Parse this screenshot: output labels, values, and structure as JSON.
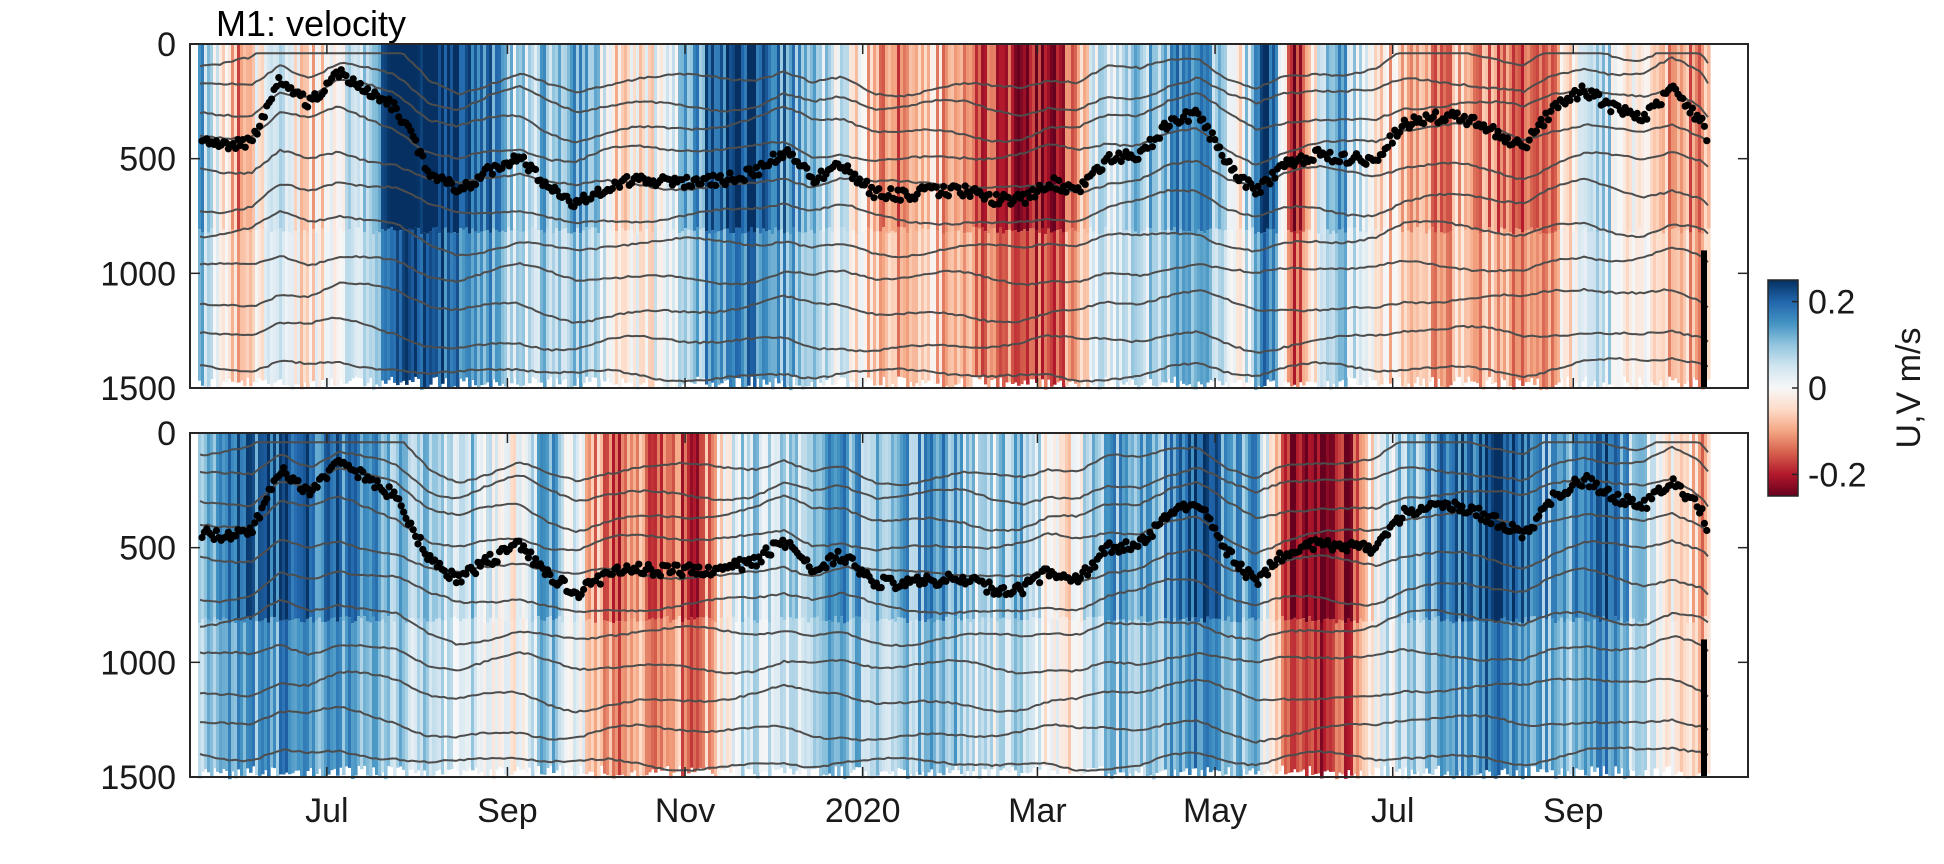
{
  "chart_data": {
    "type": "heatmap",
    "title": "M1: velocity",
    "panels": [
      {
        "name": "U",
        "ylim": [
          0,
          1500
        ],
        "y_reversed": true,
        "yticks": [
          0,
          500,
          1000,
          1500
        ],
        "ytick_labels": [
          "0",
          "500",
          "1000",
          "1500"
        ]
      },
      {
        "name": "V",
        "ylim": [
          0,
          1500
        ],
        "y_reversed": true,
        "yticks": [
          0,
          500,
          1000,
          1500
        ],
        "ytick_labels": [
          "0",
          "500",
          "1000",
          "1500"
        ],
        "xtick_labels": [
          "Jul",
          "Sep",
          "Nov",
          "2020",
          "Mar",
          "May",
          "Jul",
          "Sep"
        ]
      }
    ],
    "xlim": [
      "2019-05-15",
      "2020-10-31"
    ],
    "xticks": [
      "2019-07-01",
      "2019-09-01",
      "2019-11-01",
      "2020-01-01",
      "2020-03-01",
      "2020-05-01",
      "2020-07-01",
      "2020-09-01"
    ],
    "colorbar": {
      "label": "U,V m/s",
      "range": [
        -0.25,
        0.25
      ],
      "ticks": [
        0.2,
        0,
        -0.2
      ],
      "tick_labels": [
        "0.2",
        "0",
        "-0.2"
      ],
      "colormap": [
        "#67001f",
        "#b2182b",
        "#d6604d",
        "#f4a582",
        "#fddbc7",
        "#f7f7f7",
        "#d1e5f0",
        "#92c5de",
        "#4393c3",
        "#2166ac",
        "#053061"
      ]
    },
    "mixed_layer_depth": {
      "color": "#000000",
      "dates": [
        "2019-05-15",
        "2019-05-25",
        "2019-06-05",
        "2019-06-15",
        "2019-06-25",
        "2019-07-05",
        "2019-07-15",
        "2019-07-25",
        "2019-08-05",
        "2019-08-15",
        "2019-08-25",
        "2019-09-05",
        "2019-09-15",
        "2019-09-25",
        "2019-10-05",
        "2019-10-15",
        "2019-10-25",
        "2019-11-05",
        "2019-11-15",
        "2019-11-25",
        "2019-12-05",
        "2019-12-15",
        "2019-12-25",
        "2020-01-05",
        "2020-01-15",
        "2020-01-25",
        "2020-02-05",
        "2020-02-15",
        "2020-02-25",
        "2020-03-05",
        "2020-03-15",
        "2020-03-25",
        "2020-04-05",
        "2020-04-15",
        "2020-04-25",
        "2020-05-05",
        "2020-05-15",
        "2020-05-25",
        "2020-06-05",
        "2020-06-15",
        "2020-06-25",
        "2020-07-05",
        "2020-07-15",
        "2020-07-25",
        "2020-08-05",
        "2020-08-15",
        "2020-08-25",
        "2020-09-05",
        "2020-09-15",
        "2020-09-25",
        "2020-10-05",
        "2020-10-15",
        "2020-10-20"
      ],
      "depth": [
        420,
        450,
        430,
        150,
        260,
        120,
        200,
        280,
        550,
        640,
        560,
        490,
        620,
        700,
        620,
        590,
        600,
        600,
        590,
        560,
        470,
        590,
        530,
        650,
        660,
        640,
        640,
        680,
        680,
        600,
        640,
        500,
        490,
        350,
        300,
        520,
        650,
        520,
        480,
        500,
        500,
        350,
        320,
        320,
        380,
        450,
        280,
        200,
        280,
        320,
        200,
        340,
        550
      ]
    }
  }
}
